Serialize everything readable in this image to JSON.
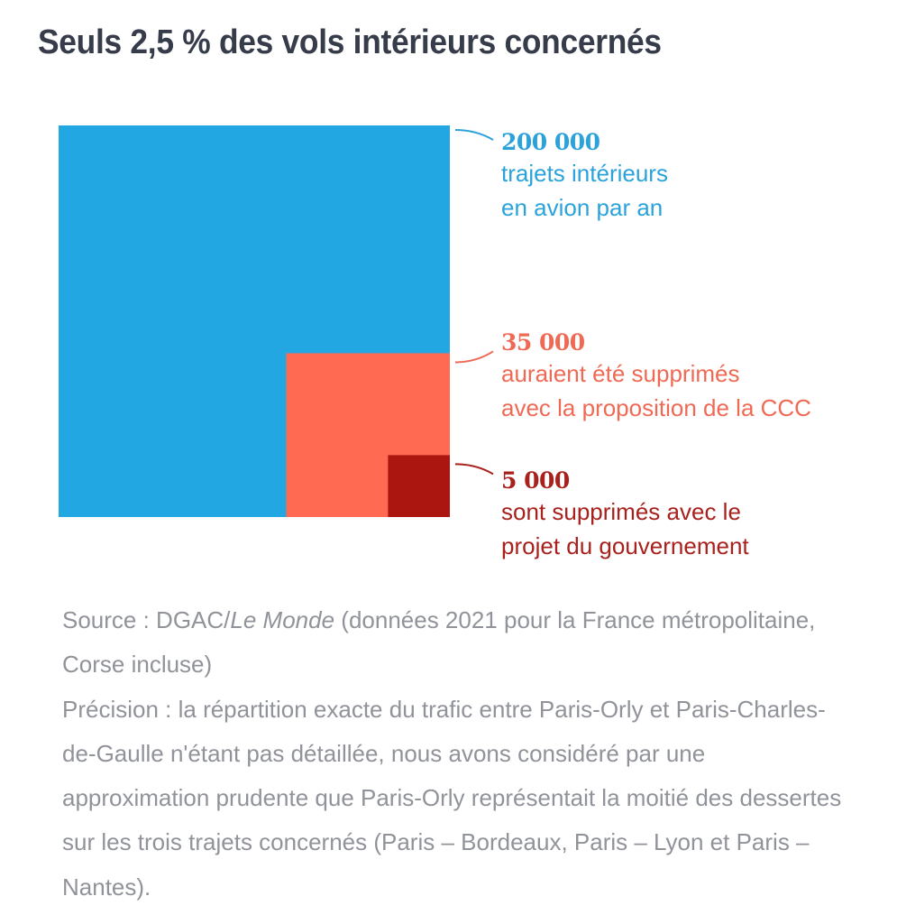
{
  "title": "Seuls 2,5 % des vols intérieurs concernés",
  "chart_data": {
    "type": "nested-square-area",
    "title": "Seuls 2,5 % des vols intérieurs concernés",
    "unit": "trajets intérieurs en avion par an",
    "series": [
      {
        "name": "total",
        "value": 200000,
        "value_label": "200 000",
        "lines": [
          "trajets intérieurs",
          "en avion par an"
        ],
        "color": "#22a7e2",
        "text_color": "#2ba3da"
      },
      {
        "name": "ccc",
        "value": 35000,
        "value_label": "35 000",
        "lines": [
          "auraient été supprimés",
          "avec la proposition de la CCC"
        ],
        "color": "#ff6a52",
        "text_color": "#ef6a55"
      },
      {
        "name": "gouvernement",
        "value": 5000,
        "value_label": "5 000",
        "lines": [
          "sont supprimés avec le",
          "projet du gouvernement"
        ],
        "color": "#ab1710",
        "text_color": "#a8211c"
      }
    ],
    "legend": "right"
  },
  "notes": {
    "source_prefix": "Source : DGAC/",
    "source_italic": "Le Monde",
    "source_suffix": " (données 2021 pour la France métropolitaine, Corse incluse)",
    "precision": "Précision : la répartition exacte du trafic entre Paris-Orly et Paris-Charles-de-Gaulle n'étant pas détaillée, nous avons considéré par une approximation prudente que Paris-Orly représentait la moitié des dessertes sur les trois trajets concernés (Paris – Bordeaux, Paris – Lyon et Paris – Nantes)."
  }
}
